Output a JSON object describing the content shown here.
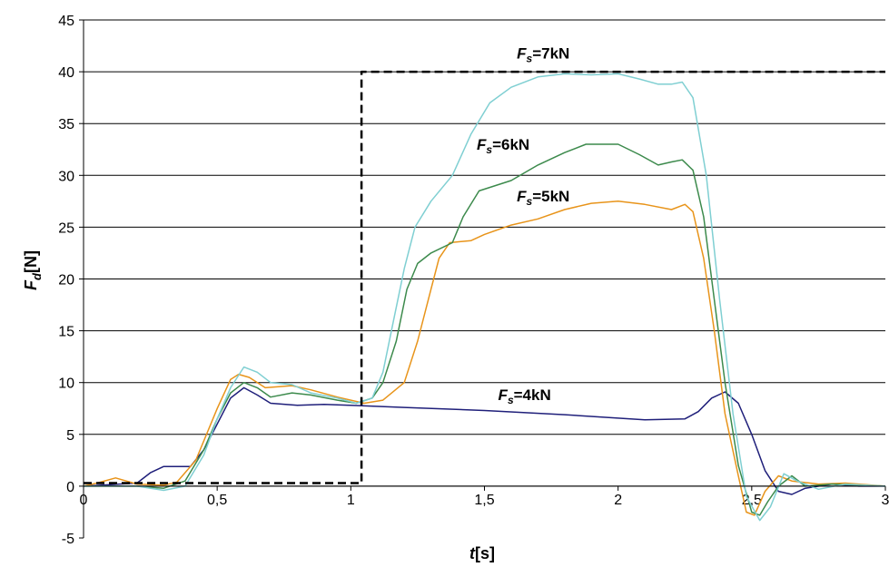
{
  "chart_data": {
    "type": "line",
    "title": "",
    "xlabel": {
      "main": "t",
      "unit": "[s]"
    },
    "ylabel": {
      "main": "F",
      "sub": "d",
      "unit": "[N]"
    },
    "xlim": [
      0,
      3
    ],
    "ylim": [
      -5,
      45
    ],
    "xticks": [
      0,
      0.5,
      1,
      1.5,
      2,
      2.5,
      3
    ],
    "xtick_labels": [
      "0",
      "0,5",
      "1",
      "1,5",
      "2",
      "2,5",
      "3"
    ],
    "yticks": [
      -5,
      0,
      5,
      10,
      15,
      20,
      25,
      30,
      35,
      40,
      45
    ],
    "ytick_labels": [
      "-5",
      "0",
      "5",
      "10",
      "15",
      "20",
      "25",
      "30",
      "35",
      "40",
      "45"
    ],
    "grid": "horizontal",
    "legend": "none",
    "series": [
      {
        "name": "Fs=4kN",
        "label": {
          "main": "F",
          "sub": "s",
          "rest": "=4kN"
        },
        "color": "#1f1f7a",
        "style": "solid",
        "points": [
          [
            0,
            0
          ],
          [
            0.2,
            0.3
          ],
          [
            0.25,
            1.3
          ],
          [
            0.3,
            1.9
          ],
          [
            0.4,
            1.9
          ],
          [
            0.45,
            3.5
          ],
          [
            0.5,
            6
          ],
          [
            0.55,
            8.5
          ],
          [
            0.6,
            9.5
          ],
          [
            0.65,
            8.8
          ],
          [
            0.7,
            8
          ],
          [
            0.8,
            7.8
          ],
          [
            0.9,
            7.9
          ],
          [
            1.0,
            7.8
          ],
          [
            1.2,
            7.6
          ],
          [
            1.5,
            7.3
          ],
          [
            1.8,
            6.9
          ],
          [
            2.1,
            6.4
          ],
          [
            2.25,
            6.5
          ],
          [
            2.3,
            7.2
          ],
          [
            2.35,
            8.5
          ],
          [
            2.4,
            9.1
          ],
          [
            2.45,
            8
          ],
          [
            2.5,
            5
          ],
          [
            2.55,
            1.5
          ],
          [
            2.6,
            -0.5
          ],
          [
            2.65,
            -0.8
          ],
          [
            2.7,
            -0.2
          ],
          [
            2.8,
            0.2
          ],
          [
            2.9,
            0
          ],
          [
            3.0,
            0
          ]
        ]
      },
      {
        "name": "Fs=5kN",
        "label": {
          "main": "F",
          "sub": "s",
          "rest": "=5kN"
        },
        "color": "#e8941a",
        "style": "solid",
        "points": [
          [
            0,
            0
          ],
          [
            0.05,
            0.3
          ],
          [
            0.12,
            0.8
          ],
          [
            0.2,
            0.2
          ],
          [
            0.3,
            0.1
          ],
          [
            0.35,
            0.4
          ],
          [
            0.42,
            2.5
          ],
          [
            0.5,
            7.5
          ],
          [
            0.55,
            10.3
          ],
          [
            0.58,
            10.8
          ],
          [
            0.62,
            10.5
          ],
          [
            0.68,
            9.5
          ],
          [
            0.78,
            9.7
          ],
          [
            0.85,
            9.3
          ],
          [
            0.95,
            8.6
          ],
          [
            1.05,
            8
          ],
          [
            1.12,
            8.3
          ],
          [
            1.2,
            10
          ],
          [
            1.25,
            14
          ],
          [
            1.3,
            19
          ],
          [
            1.33,
            22
          ],
          [
            1.37,
            23.5
          ],
          [
            1.45,
            23.7
          ],
          [
            1.5,
            24.3
          ],
          [
            1.6,
            25.2
          ],
          [
            1.7,
            25.8
          ],
          [
            1.8,
            26.7
          ],
          [
            1.9,
            27.3
          ],
          [
            2.0,
            27.5
          ],
          [
            2.1,
            27.2
          ],
          [
            2.2,
            26.7
          ],
          [
            2.25,
            27.2
          ],
          [
            2.28,
            26.5
          ],
          [
            2.32,
            22
          ],
          [
            2.36,
            15
          ],
          [
            2.4,
            7
          ],
          [
            2.45,
            1
          ],
          [
            2.48,
            -2.5
          ],
          [
            2.51,
            -2.8
          ],
          [
            2.55,
            -0.5
          ],
          [
            2.6,
            1
          ],
          [
            2.65,
            0.5
          ],
          [
            2.75,
            0.2
          ],
          [
            2.85,
            0.3
          ],
          [
            3.0,
            0
          ]
        ]
      },
      {
        "name": "Fs=6kN",
        "label": {
          "main": "F",
          "sub": "s",
          "rest": "=6kN"
        },
        "color": "#3c8a4c",
        "style": "solid",
        "points": [
          [
            0,
            0
          ],
          [
            0.2,
            0
          ],
          [
            0.3,
            -0.2
          ],
          [
            0.38,
            0.5
          ],
          [
            0.45,
            3.5
          ],
          [
            0.5,
            6.5
          ],
          [
            0.55,
            9
          ],
          [
            0.6,
            10
          ],
          [
            0.65,
            9.5
          ],
          [
            0.7,
            8.6
          ],
          [
            0.78,
            9
          ],
          [
            0.85,
            8.8
          ],
          [
            0.95,
            8.3
          ],
          [
            1.02,
            8
          ],
          [
            1.08,
            8.5
          ],
          [
            1.12,
            10
          ],
          [
            1.17,
            14
          ],
          [
            1.21,
            19
          ],
          [
            1.25,
            21.5
          ],
          [
            1.3,
            22.5
          ],
          [
            1.38,
            23.5
          ],
          [
            1.42,
            26
          ],
          [
            1.48,
            28.5
          ],
          [
            1.6,
            29.5
          ],
          [
            1.7,
            31
          ],
          [
            1.8,
            32.2
          ],
          [
            1.88,
            33
          ],
          [
            2.0,
            33
          ],
          [
            2.08,
            32
          ],
          [
            2.15,
            31
          ],
          [
            2.2,
            31.3
          ],
          [
            2.24,
            31.5
          ],
          [
            2.28,
            30.5
          ],
          [
            2.32,
            26
          ],
          [
            2.36,
            18
          ],
          [
            2.4,
            10
          ],
          [
            2.45,
            2
          ],
          [
            2.5,
            -2.5
          ],
          [
            2.53,
            -2.8
          ],
          [
            2.56,
            -1.5
          ],
          [
            2.6,
            0
          ],
          [
            2.65,
            1
          ],
          [
            2.7,
            0
          ],
          [
            2.8,
            0.2
          ],
          [
            3.0,
            0
          ]
        ]
      },
      {
        "name": "Fs=7kN",
        "label": {
          "main": "F",
          "sub": "s",
          "rest": "=7kN"
        },
        "color": "#7fcfd2",
        "style": "solid",
        "points": [
          [
            0,
            0
          ],
          [
            0.2,
            0
          ],
          [
            0.3,
            -0.4
          ],
          [
            0.38,
            0
          ],
          [
            0.45,
            3
          ],
          [
            0.5,
            6.5
          ],
          [
            0.55,
            9.5
          ],
          [
            0.6,
            11.5
          ],
          [
            0.65,
            11
          ],
          [
            0.7,
            10
          ],
          [
            0.78,
            9.8
          ],
          [
            0.85,
            9
          ],
          [
            0.95,
            8.5
          ],
          [
            1.02,
            8
          ],
          [
            1.08,
            8.5
          ],
          [
            1.12,
            11
          ],
          [
            1.16,
            16
          ],
          [
            1.2,
            21
          ],
          [
            1.24,
            25
          ],
          [
            1.3,
            27.5
          ],
          [
            1.38,
            30
          ],
          [
            1.45,
            34
          ],
          [
            1.52,
            37
          ],
          [
            1.6,
            38.5
          ],
          [
            1.7,
            39.5
          ],
          [
            1.8,
            39.8
          ],
          [
            1.9,
            39.7
          ],
          [
            2.0,
            39.8
          ],
          [
            2.08,
            39.3
          ],
          [
            2.15,
            38.8
          ],
          [
            2.2,
            38.8
          ],
          [
            2.24,
            39
          ],
          [
            2.28,
            37.5
          ],
          [
            2.33,
            30
          ],
          [
            2.38,
            18
          ],
          [
            2.43,
            7
          ],
          [
            2.48,
            -1
          ],
          [
            2.53,
            -3.3
          ],
          [
            2.57,
            -2
          ],
          [
            2.62,
            1.2
          ],
          [
            2.67,
            0.5
          ],
          [
            2.75,
            -0.3
          ],
          [
            2.85,
            0.2
          ],
          [
            3.0,
            0
          ]
        ]
      },
      {
        "name": "",
        "color": "#000000",
        "style": "dashed",
        "points": [
          [
            0,
            0.3
          ],
          [
            1.04,
            0.3
          ],
          [
            1.04,
            40
          ],
          [
            3.0,
            40
          ]
        ]
      }
    ]
  }
}
